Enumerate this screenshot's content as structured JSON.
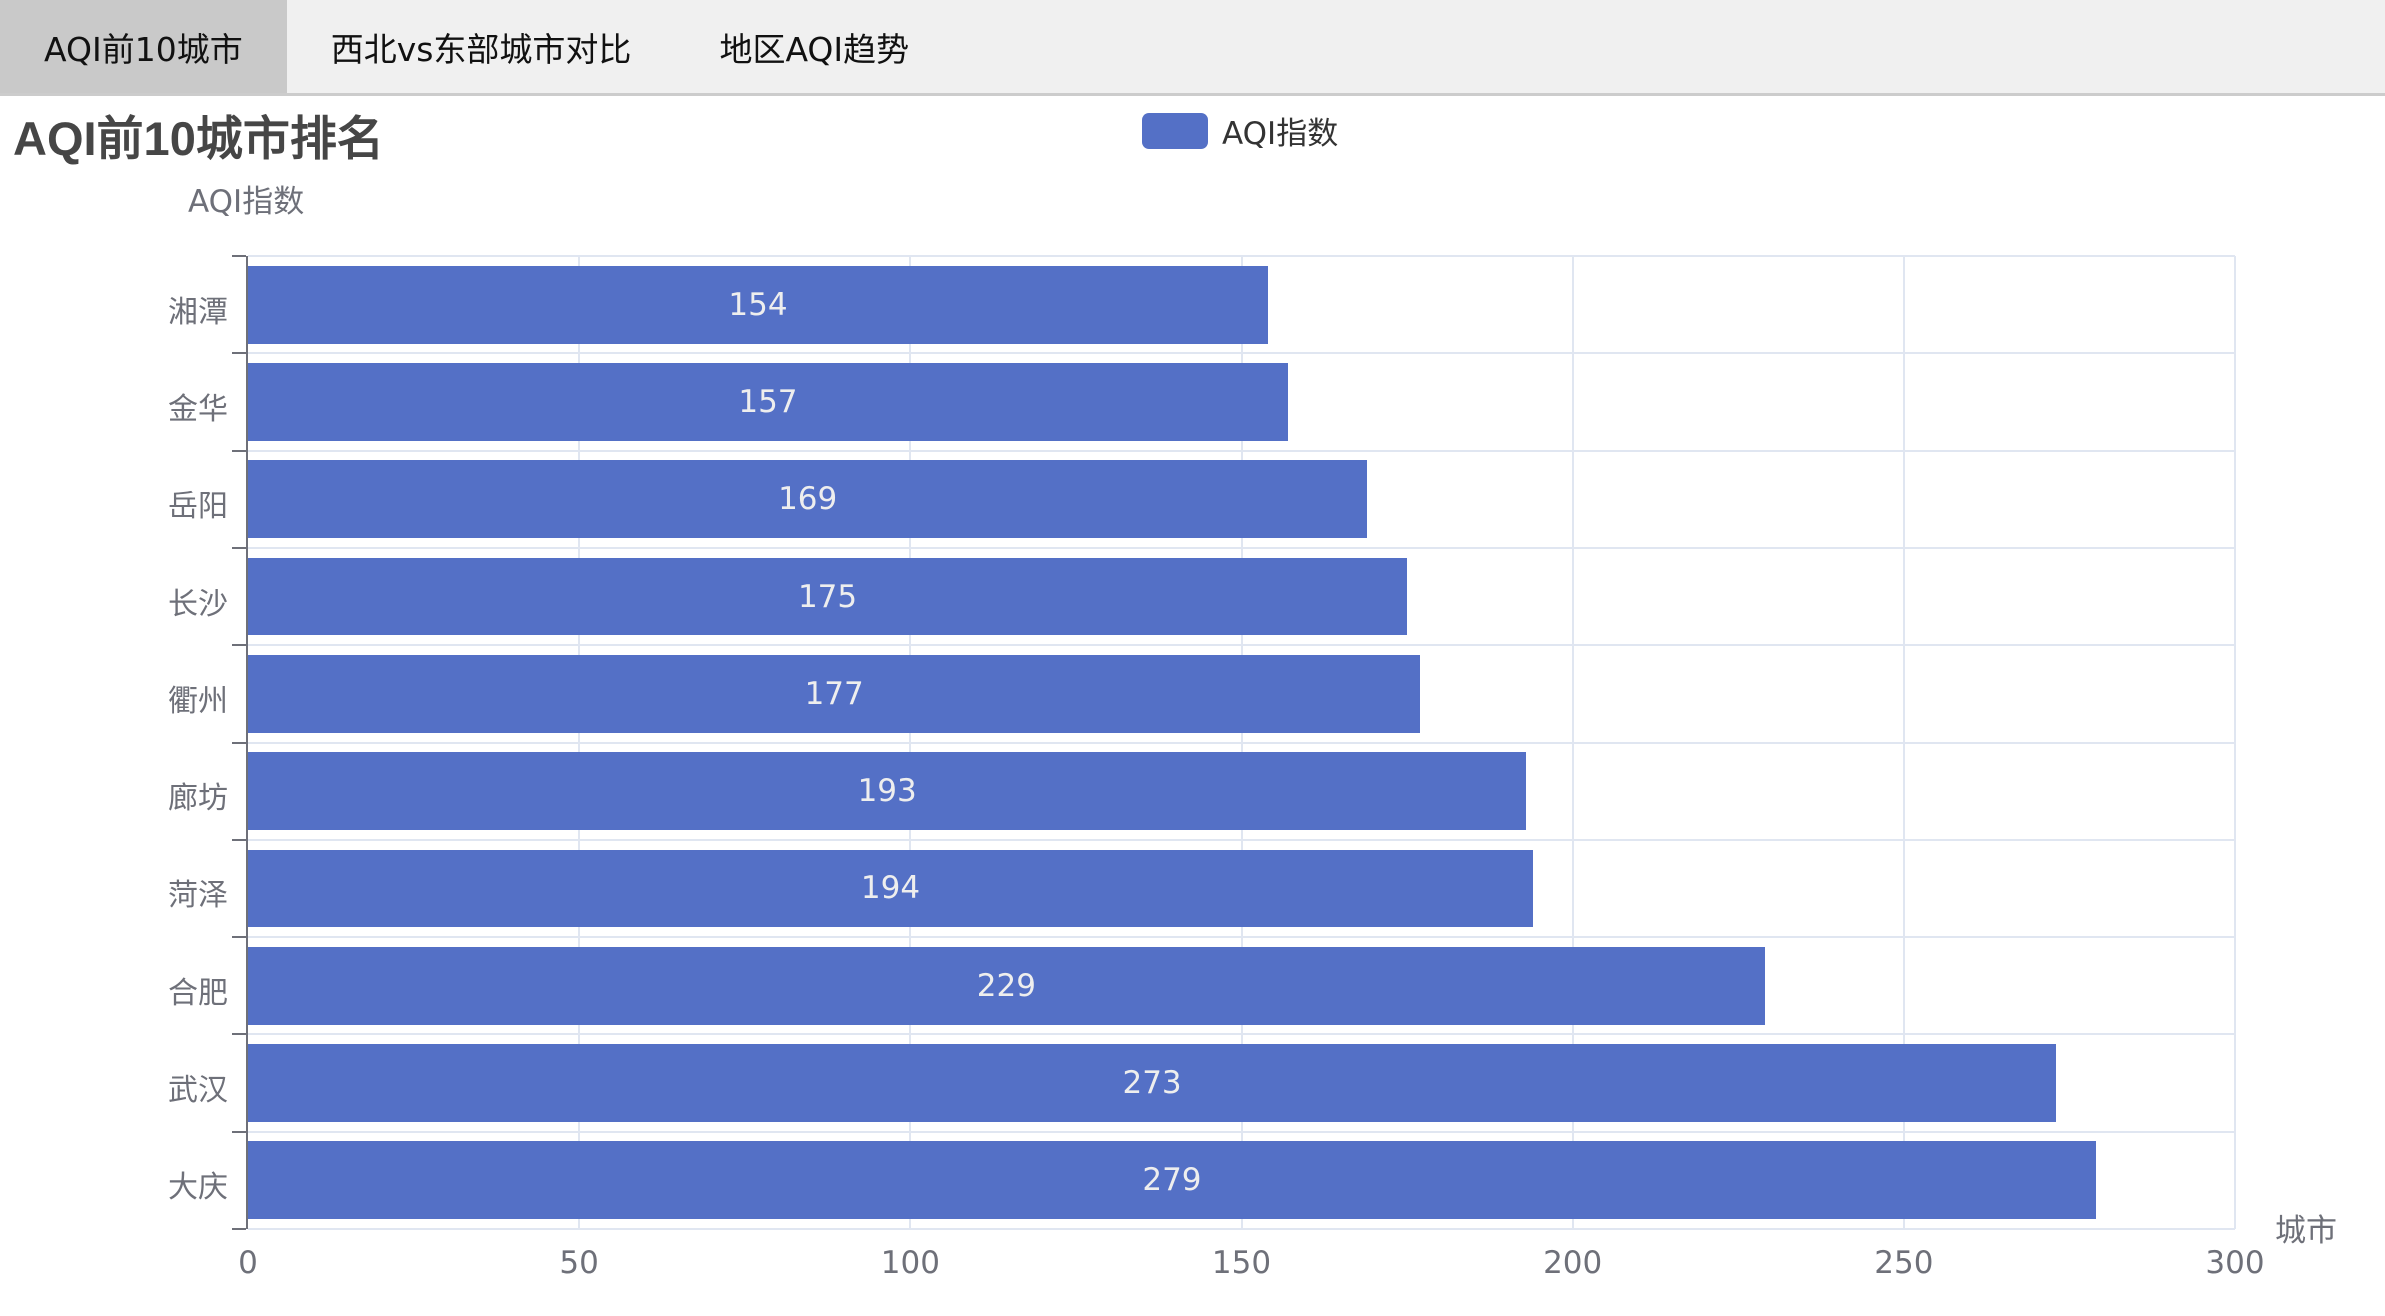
{
  "tabs": [
    {
      "label": "AQI前10城市",
      "active": true
    },
    {
      "label": "西北vs东部城市对比",
      "active": false
    },
    {
      "label": "地区AQI趋势",
      "active": false
    }
  ],
  "colors": {
    "bar": "#5470c6",
    "grid": "#e0e6f1",
    "axis": "#6e7079",
    "tab_active": "#c9c9c9",
    "tab_bar": "#f0f0f0"
  },
  "chart_data": {
    "type": "bar",
    "orientation": "horizontal",
    "title": "AQI前10城市排名",
    "legend": [
      "AQI指数"
    ],
    "legend_position": "top-center",
    "ylabel": "AQI指数",
    "xlabel": "城市",
    "categories": [
      "大庆",
      "武汉",
      "合肥",
      "菏泽",
      "廊坊",
      "衢州",
      "长沙",
      "岳阳",
      "金华",
      "湘潭"
    ],
    "series": [
      {
        "name": "AQI指数",
        "values": [
          279,
          273,
          229,
          194,
          193,
          177,
          175,
          169,
          157,
          154
        ]
      }
    ],
    "xlim": [
      0,
      300
    ],
    "x_ticks": [
      "0",
      "50",
      "100",
      "150",
      "200",
      "250",
      "300"
    ],
    "grid": true,
    "data_labels": true
  }
}
